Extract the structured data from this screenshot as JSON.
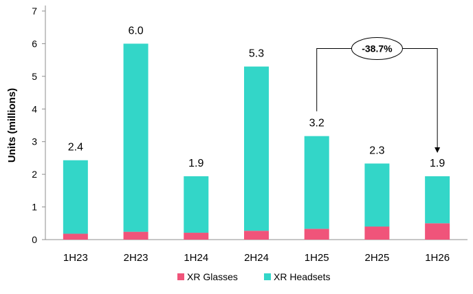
{
  "chart_data": {
    "type": "bar",
    "stacked": true,
    "categories": [
      "1H23",
      "2H23",
      "1H24",
      "2H24",
      "1H25",
      "2H25",
      "1H26"
    ],
    "series": [
      {
        "name": "XR Glasses",
        "values": [
          0.18,
          0.24,
          0.21,
          0.27,
          0.33,
          0.4,
          0.5
        ],
        "color": "#f0547a"
      },
      {
        "name": "XR Headsets",
        "values": [
          2.25,
          5.76,
          1.73,
          5.03,
          2.84,
          1.93,
          1.44
        ],
        "color": "#33d6c8"
      }
    ],
    "totals": [
      2.43,
      6.0,
      1.94,
      5.3,
      3.17,
      2.33,
      1.94
    ],
    "data_labels": [
      "2.4",
      "6.0",
      "1.9",
      "5.3",
      "3.2",
      "2.3",
      "1.9"
    ],
    "title": "",
    "xlabel": "",
    "ylabel": "Units (millions)",
    "ylim": [
      0,
      7
    ],
    "yticks": [
      0,
      1,
      2,
      3,
      4,
      5,
      6,
      7
    ],
    "grid": false,
    "legend": "bottom",
    "annotation": {
      "text": "-38.7%",
      "from": "1H25",
      "to": "1H26"
    }
  }
}
